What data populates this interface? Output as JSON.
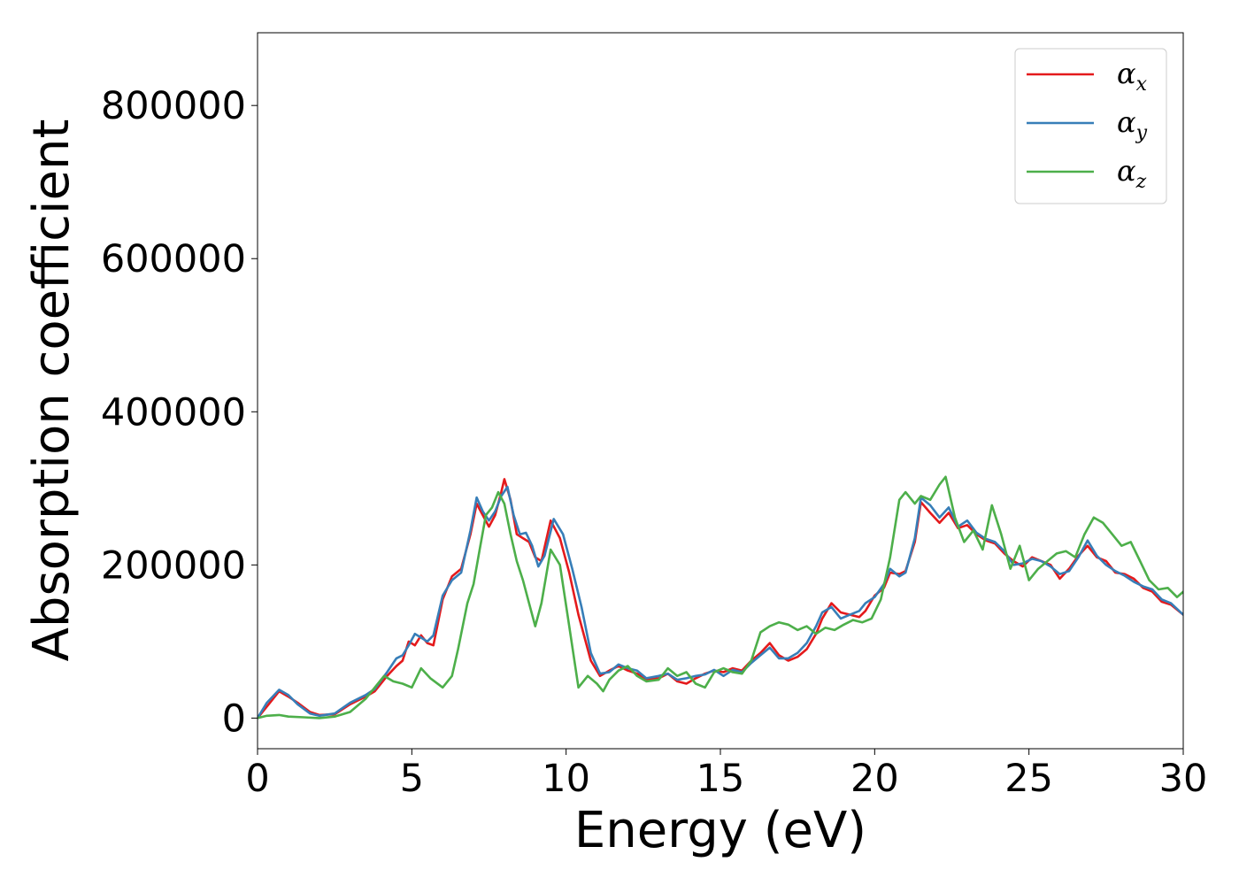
{
  "chart_data": {
    "type": "line",
    "xlabel": "Energy (eV)",
    "ylabel": "Absorption coefficient",
    "xlim": [
      0,
      30
    ],
    "ylim": [
      -40000,
      895000
    ],
    "xticks": [
      0,
      5,
      10,
      15,
      20,
      25,
      30
    ],
    "yticks": [
      0,
      200000,
      400000,
      600000,
      800000
    ],
    "grid": false,
    "legend_position": "top-right",
    "series": [
      {
        "name": "α_x",
        "label_base": "α",
        "label_sub": "x",
        "color": "#e41a1c",
        "x": [
          0,
          0.3,
          0.7,
          1.0,
          1.3,
          1.7,
          2.0,
          2.5,
          3.0,
          3.5,
          3.8,
          4.2,
          4.5,
          4.7,
          4.9,
          5.1,
          5.3,
          5.5,
          5.7,
          6.0,
          6.3,
          6.6,
          6.9,
          7.1,
          7.3,
          7.5,
          7.7,
          7.9,
          8.0,
          8.2,
          8.4,
          8.6,
          8.8,
          9.0,
          9.2,
          9.5,
          9.8,
          10.1,
          10.4,
          10.8,
          11.1,
          11.4,
          11.7,
          12.0,
          12.3,
          12.6,
          13.0,
          13.3,
          13.6,
          13.9,
          14.2,
          14.5,
          14.8,
          15.1,
          15.4,
          15.7,
          16.0,
          16.3,
          16.6,
          16.9,
          17.2,
          17.5,
          17.8,
          18.1,
          18.3,
          18.6,
          18.9,
          19.2,
          19.5,
          19.7,
          20.0,
          20.3,
          20.5,
          20.8,
          21.0,
          21.3,
          21.5,
          21.8,
          22.1,
          22.4,
          22.7,
          23.0,
          23.3,
          23.6,
          23.9,
          24.2,
          24.5,
          24.8,
          25.1,
          25.4,
          25.7,
          26.0,
          26.3,
          26.6,
          26.9,
          27.2,
          27.5,
          27.8,
          28.1,
          28.4,
          28.7,
          29.0,
          29.3,
          29.6,
          30.0
        ],
        "y": [
          0,
          15000,
          35000,
          28000,
          20000,
          8000,
          4000,
          5000,
          18000,
          28000,
          35000,
          55000,
          68000,
          75000,
          100000,
          95000,
          108000,
          98000,
          95000,
          155000,
          185000,
          195000,
          240000,
          280000,
          265000,
          250000,
          265000,
          295000,
          312000,
          285000,
          240000,
          235000,
          230000,
          210000,
          205000,
          258000,
          235000,
          190000,
          135000,
          75000,
          55000,
          62000,
          68000,
          62000,
          58000,
          50000,
          52000,
          58000,
          48000,
          45000,
          52000,
          58000,
          62000,
          60000,
          65000,
          62000,
          75000,
          85000,
          98000,
          82000,
          75000,
          80000,
          90000,
          110000,
          130000,
          150000,
          138000,
          135000,
          132000,
          140000,
          160000,
          170000,
          190000,
          188000,
          192000,
          230000,
          282000,
          268000,
          255000,
          268000,
          248000,
          252000,
          240000,
          232000,
          228000,
          215000,
          205000,
          198000,
          210000,
          205000,
          200000,
          182000,
          195000,
          212000,
          225000,
          210000,
          205000,
          190000,
          188000,
          182000,
          170000,
          165000,
          152000,
          148000,
          135000
        ]
      },
      {
        "name": "α_y",
        "label_base": "α",
        "label_sub": "y",
        "color": "#377eb8",
        "x": [
          0,
          0.3,
          0.7,
          1.0,
          1.3,
          1.7,
          2.0,
          2.5,
          3.0,
          3.5,
          3.8,
          4.2,
          4.5,
          4.7,
          4.9,
          5.1,
          5.3,
          5.5,
          5.7,
          6.0,
          6.3,
          6.6,
          6.9,
          7.1,
          7.3,
          7.5,
          7.7,
          7.9,
          8.1,
          8.3,
          8.5,
          8.7,
          8.9,
          9.1,
          9.3,
          9.6,
          9.9,
          10.2,
          10.5,
          10.8,
          11.1,
          11.4,
          11.7,
          12.0,
          12.3,
          12.6,
          13.0,
          13.3,
          13.6,
          13.9,
          14.2,
          14.5,
          14.8,
          15.1,
          15.4,
          15.7,
          16.0,
          16.3,
          16.6,
          16.9,
          17.2,
          17.5,
          17.8,
          18.1,
          18.3,
          18.6,
          18.9,
          19.2,
          19.5,
          19.7,
          20.0,
          20.3,
          20.5,
          20.8,
          21.0,
          21.3,
          21.5,
          21.8,
          22.1,
          22.4,
          22.7,
          23.0,
          23.3,
          23.6,
          23.9,
          24.2,
          24.5,
          24.8,
          25.1,
          25.4,
          25.7,
          26.0,
          26.3,
          26.6,
          26.9,
          27.2,
          27.5,
          27.8,
          28.1,
          28.4,
          28.7,
          29.0,
          29.3,
          29.6,
          30.0
        ],
        "y": [
          0,
          20000,
          37000,
          30000,
          18000,
          6000,
          3000,
          6000,
          20000,
          30000,
          38000,
          60000,
          78000,
          82000,
          95000,
          110000,
          105000,
          100000,
          108000,
          160000,
          180000,
          190000,
          245000,
          288000,
          270000,
          258000,
          270000,
          290000,
          302000,
          265000,
          240000,
          242000,
          225000,
          198000,
          212000,
          260000,
          240000,
          195000,
          145000,
          85000,
          58000,
          60000,
          70000,
          65000,
          62000,
          52000,
          55000,
          58000,
          50000,
          52000,
          55000,
          57000,
          63000,
          55000,
          63000,
          60000,
          72000,
          82000,
          92000,
          78000,
          78000,
          85000,
          98000,
          120000,
          138000,
          145000,
          130000,
          135000,
          140000,
          150000,
          158000,
          175000,
          195000,
          185000,
          190000,
          235000,
          288000,
          278000,
          262000,
          275000,
          250000,
          258000,
          242000,
          234000,
          230000,
          218000,
          200000,
          202000,
          208000,
          205000,
          198000,
          188000,
          192000,
          210000,
          232000,
          212000,
          200000,
          192000,
          186000,
          178000,
          172000,
          168000,
          155000,
          150000,
          135000
        ]
      },
      {
        "name": "α_z",
        "label_base": "α",
        "label_sub": "z",
        "color": "#4daf4a",
        "x": [
          0,
          0.3,
          0.7,
          1.0,
          1.5,
          2.0,
          2.5,
          3.0,
          3.5,
          3.8,
          4.1,
          4.4,
          4.7,
          5.0,
          5.3,
          5.6,
          6.0,
          6.3,
          6.5,
          6.8,
          7.0,
          7.2,
          7.4,
          7.6,
          7.8,
          8.0,
          8.2,
          8.4,
          8.6,
          8.8,
          9.0,
          9.2,
          9.5,
          9.8,
          10.1,
          10.4,
          10.7,
          11.0,
          11.2,
          11.4,
          11.7,
          12.0,
          12.3,
          12.6,
          13.0,
          13.3,
          13.6,
          13.9,
          14.2,
          14.5,
          14.8,
          15.1,
          15.4,
          15.7,
          16.0,
          16.3,
          16.6,
          16.9,
          17.2,
          17.5,
          17.8,
          18.1,
          18.4,
          18.7,
          19.0,
          19.3,
          19.6,
          19.9,
          20.2,
          20.5,
          20.8,
          21.0,
          21.3,
          21.5,
          21.8,
          22.1,
          22.3,
          22.6,
          22.9,
          23.2,
          23.5,
          23.8,
          24.1,
          24.4,
          24.7,
          25.0,
          25.3,
          25.6,
          25.9,
          26.2,
          26.5,
          26.8,
          27.1,
          27.4,
          27.7,
          28.0,
          28.3,
          28.6,
          28.9,
          29.2,
          29.5,
          29.8,
          30.0
        ],
        "y": [
          0,
          3000,
          4000,
          2000,
          1000,
          0,
          2000,
          8000,
          25000,
          40000,
          55000,
          48000,
          45000,
          40000,
          65000,
          52000,
          40000,
          55000,
          90000,
          150000,
          175000,
          220000,
          265000,
          275000,
          295000,
          280000,
          240000,
          205000,
          180000,
          150000,
          120000,
          150000,
          220000,
          200000,
          120000,
          40000,
          55000,
          45000,
          35000,
          50000,
          62000,
          68000,
          55000,
          48000,
          50000,
          65000,
          55000,
          60000,
          45000,
          40000,
          60000,
          65000,
          60000,
          58000,
          75000,
          112000,
          120000,
          125000,
          122000,
          115000,
          120000,
          110000,
          118000,
          115000,
          122000,
          128000,
          125000,
          130000,
          155000,
          210000,
          285000,
          295000,
          280000,
          290000,
          285000,
          305000,
          315000,
          262000,
          230000,
          245000,
          220000,
          278000,
          240000,
          195000,
          225000,
          180000,
          195000,
          205000,
          215000,
          218000,
          210000,
          240000,
          262000,
          255000,
          240000,
          225000,
          230000,
          205000,
          180000,
          168000,
          170000,
          158000,
          165000
        ]
      }
    ]
  }
}
